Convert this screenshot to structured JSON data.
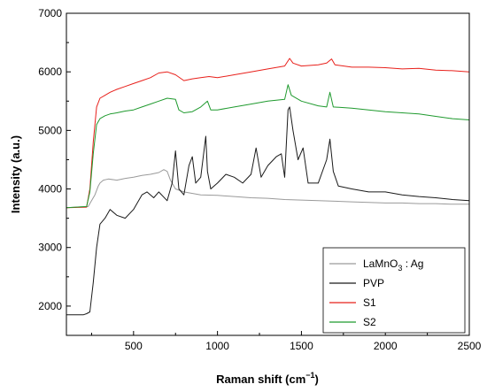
{
  "chart_data": {
    "type": "line",
    "title": "",
    "xlabel": "Raman shift (cm",
    "xlabel_sup": "−1",
    "xlabel_end": ")",
    "ylabel": "Intensity (a.u.)",
    "xlim": [
      100,
      2500
    ],
    "ylim": [
      1500,
      7000
    ],
    "x_ticks": [
      500,
      1000,
      1500,
      2000,
      2500
    ],
    "y_ticks": [
      2000,
      3000,
      4000,
      5000,
      6000,
      7000
    ],
    "grid": false,
    "legend_position": "bottom-right",
    "series": [
      {
        "name": "LaMnO3 : Ag",
        "legend_text": "LaMnO",
        "legend_sub": "3",
        "legend_suffix": " : Ag",
        "color": "#9a9a9a",
        "x": [
          100,
          230,
          250,
          270,
          290,
          300,
          320,
          350,
          400,
          450,
          500,
          550,
          600,
          650,
          680,
          700,
          720,
          750,
          800,
          900,
          1000,
          1100,
          1200,
          1300,
          1400,
          1500,
          1600,
          1700,
          1800,
          1900,
          2000,
          2100,
          2200,
          2300,
          2400,
          2500
        ],
        "y": [
          3680,
          3700,
          3800,
          3900,
          4050,
          4100,
          4150,
          4170,
          4150,
          4180,
          4200,
          4230,
          4250,
          4280,
          4330,
          4300,
          4150,
          4000,
          3950,
          3900,
          3890,
          3870,
          3850,
          3840,
          3820,
          3810,
          3800,
          3790,
          3780,
          3770,
          3760,
          3760,
          3750,
          3750,
          3740,
          3740
        ]
      },
      {
        "name": "PVP",
        "color": "#1a1a1a",
        "x": [
          100,
          200,
          220,
          240,
          260,
          280,
          300,
          330,
          360,
          400,
          450,
          500,
          550,
          580,
          620,
          650,
          700,
          730,
          750,
          770,
          800,
          830,
          850,
          870,
          900,
          930,
          940,
          960,
          1000,
          1050,
          1100,
          1150,
          1200,
          1230,
          1260,
          1300,
          1350,
          1380,
          1400,
          1420,
          1430,
          1450,
          1480,
          1510,
          1540,
          1600,
          1650,
          1670,
          1690,
          1720,
          1800,
          1900,
          2000,
          2100,
          2200,
          2300,
          2400,
          2500
        ],
        "y": [
          1850,
          1850,
          1870,
          1900,
          2400,
          3000,
          3400,
          3500,
          3650,
          3550,
          3500,
          3650,
          3900,
          3950,
          3850,
          3950,
          3800,
          4100,
          4650,
          4000,
          3900,
          4400,
          4550,
          4100,
          4200,
          4900,
          4300,
          4000,
          4100,
          4250,
          4200,
          4100,
          4250,
          4700,
          4200,
          4400,
          4550,
          4600,
          4200,
          5350,
          5400,
          5000,
          4500,
          4700,
          4100,
          4100,
          4500,
          4850,
          4300,
          4050,
          4000,
          3950,
          3950,
          3900,
          3870,
          3850,
          3820,
          3800
        ]
      },
      {
        "name": "S1",
        "color": "#e8201b",
        "x": [
          100,
          220,
          240,
          260,
          280,
          300,
          330,
          360,
          400,
          450,
          500,
          550,
          600,
          650,
          700,
          750,
          800,
          850,
          900,
          950,
          1000,
          1100,
          1200,
          1300,
          1400,
          1430,
          1450,
          1500,
          1600,
          1650,
          1680,
          1700,
          1800,
          1900,
          2000,
          2100,
          2200,
          2300,
          2400,
          2500
        ],
        "y": [
          3680,
          3690,
          4000,
          4800,
          5400,
          5550,
          5600,
          5650,
          5700,
          5750,
          5800,
          5850,
          5900,
          5980,
          6000,
          5950,
          5850,
          5880,
          5900,
          5920,
          5900,
          5950,
          6000,
          6050,
          6100,
          6230,
          6150,
          6100,
          6120,
          6150,
          6220,
          6120,
          6080,
          6080,
          6070,
          6050,
          6060,
          6030,
          6020,
          6000
        ]
      },
      {
        "name": "S2",
        "color": "#1f9a2e",
        "x": [
          100,
          220,
          240,
          260,
          280,
          300,
          330,
          360,
          400,
          450,
          500,
          550,
          600,
          650,
          700,
          750,
          770,
          800,
          850,
          900,
          940,
          960,
          1000,
          1100,
          1200,
          1300,
          1400,
          1420,
          1440,
          1500,
          1600,
          1650,
          1670,
          1690,
          1800,
          1900,
          2000,
          2100,
          2200,
          2300,
          2400,
          2500
        ],
        "y": [
          3680,
          3700,
          3950,
          4600,
          5100,
          5200,
          5250,
          5280,
          5300,
          5330,
          5350,
          5400,
          5450,
          5500,
          5550,
          5530,
          5350,
          5300,
          5320,
          5400,
          5500,
          5350,
          5350,
          5400,
          5450,
          5500,
          5530,
          5780,
          5600,
          5500,
          5420,
          5400,
          5650,
          5400,
          5380,
          5350,
          5320,
          5300,
          5280,
          5240,
          5200,
          5180
        ]
      }
    ]
  }
}
